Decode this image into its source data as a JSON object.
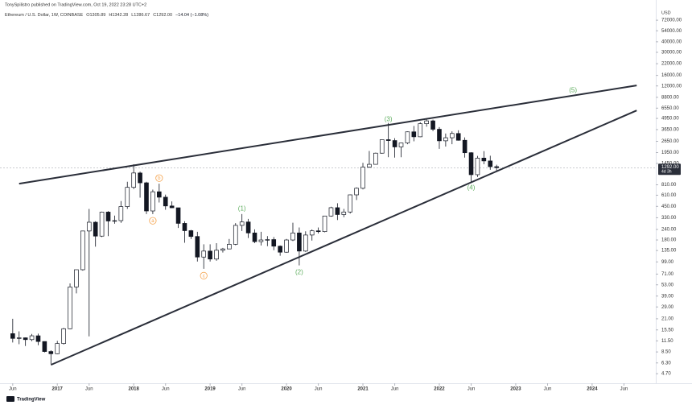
{
  "chart_data": {
    "type": "candlestick",
    "publisher": "TonySpilistro published on TradingView.com, Oct 19, 2022 23:28 UTC+2",
    "title": "Ethereum / U.S. Dollar, 1W, COINBASE",
    "legend_values": [
      "O1305.89",
      "H1342.28",
      "L1286.67",
      "C1292.00",
      "−14.04 (−1.08%)"
    ],
    "y_unit": "USD",
    "brand": "TradingView",
    "log_scale": true,
    "up_color": "#ffffff",
    "down_color": "#131722",
    "x": [
      "2016-06",
      "2016-07",
      "2016-08",
      "2016-09",
      "2016-10",
      "2016-11",
      "2016-12",
      "2017-01",
      "2017-02",
      "2017-03",
      "2017-04",
      "2017-05",
      "2017-06",
      "2017-07",
      "2017-08",
      "2017-09",
      "2017-10",
      "2017-11",
      "2017-12",
      "2018-01",
      "2018-02",
      "2018-03",
      "2018-04",
      "2018-05",
      "2018-06",
      "2018-07",
      "2018-08",
      "2018-09",
      "2018-10",
      "2018-11",
      "2018-12",
      "2019-01",
      "2019-02",
      "2019-03",
      "2019-04",
      "2019-05",
      "2019-06",
      "2019-07",
      "2019-08",
      "2019-09",
      "2019-10",
      "2019-11",
      "2019-12",
      "2020-01",
      "2020-02",
      "2020-03",
      "2020-04",
      "2020-05",
      "2020-06",
      "2020-07",
      "2020-08",
      "2020-09",
      "2020-10",
      "2020-11",
      "2020-12",
      "2021-01",
      "2021-02",
      "2021-03",
      "2021-04",
      "2021-05",
      "2021-06",
      "2021-07",
      "2021-08",
      "2021-09",
      "2021-10",
      "2021-11",
      "2021-12",
      "2022-01",
      "2022-02",
      "2022-03",
      "2022-04",
      "2022-05",
      "2022-06",
      "2022-07",
      "2022-08",
      "2022-09",
      "2022-10"
    ],
    "open": [
      14,
      12.3,
      12.5,
      11.9,
      13.2,
      11.3,
      8.6,
      8.1,
      10.7,
      16,
      50,
      80,
      230,
      292,
      200,
      385,
      302,
      305,
      447,
      756,
      1118,
      855,
      397,
      670,
      578,
      455,
      433,
      283,
      232,
      198,
      113,
      133,
      107,
      136,
      141,
      160,
      268,
      294,
      218,
      172,
      180,
      182,
      152,
      129,
      180,
      218,
      133,
      206,
      231,
      226,
      346,
      434,
      360,
      386,
      616,
      737,
      1314,
      1416,
      1919,
      2773,
      2707,
      2275,
      2536,
      3433,
      3000,
      4288,
      4630,
      3683,
      2688,
      2922,
      3282,
      2727,
      1942,
      1067,
      1678,
      1553,
      1328
    ],
    "high": [
      21,
      14.9,
      12.6,
      13.9,
      14,
      11.3,
      8.9,
      11.5,
      16.4,
      55,
      80,
      232,
      420,
      300,
      390,
      395,
      350,
      520,
      880,
      1420,
      1160,
      880,
      710,
      835,
      620,
      515,
      434,
      300,
      237,
      225,
      160,
      160,
      165,
      145,
      185,
      285,
      365,
      320,
      240,
      225,
      200,
      195,
      155,
      185,
      288,
      253,
      228,
      240,
      253,
      348,
      445,
      490,
      420,
      622,
      755,
      1475,
      2040,
      1945,
      2800,
      4380,
      2890,
      2550,
      3470,
      4030,
      4460,
      4870,
      4780,
      3900,
      3280,
      3480,
      3580,
      2950,
      1970,
      1780,
      2030,
      1790,
      1400
    ],
    "low": [
      11,
      10.5,
      10,
      11.4,
      10.2,
      8.4,
      6.1,
      8,
      10.4,
      15.8,
      42,
      78,
      13,
      150,
      195,
      200,
      280,
      287,
      420,
      720,
      570,
      365,
      365,
      500,
      410,
      430,
      250,
      167,
      185,
      100,
      82,
      100,
      102,
      128,
      141,
      156,
      230,
      190,
      165,
      155,
      152,
      136,
      117,
      127,
      175,
      90,
      130,
      177,
      215,
      222,
      340,
      310,
      335,
      370,
      535,
      715,
      1290,
      1410,
      1890,
      1720,
      1700,
      1720,
      2450,
      2650,
      2970,
      3950,
      3500,
      2160,
      2300,
      2450,
      2700,
      1700,
      880,
      1000,
      1420,
      1220,
      1190
    ],
    "close": [
      12.3,
      12.5,
      11.9,
      13.2,
      11.3,
      8.6,
      8.1,
      10.7,
      16,
      50,
      80,
      230,
      292,
      200,
      385,
      302,
      305,
      447,
      756,
      1118,
      855,
      397,
      670,
      578,
      455,
      433,
      283,
      232,
      198,
      113,
      133,
      107,
      136,
      141,
      160,
      268,
      294,
      218,
      172,
      180,
      182,
      152,
      129,
      180,
      218,
      133,
      206,
      231,
      226,
      346,
      434,
      360,
      386,
      616,
      737,
      1314,
      1416,
      1919,
      2773,
      2707,
      2275,
      2536,
      3433,
      3000,
      4288,
      4630,
      3683,
      2688,
      2922,
      3282,
      2727,
      1942,
      1067,
      1678,
      1553,
      1328,
      1292
    ],
    "xlim": [
      "2016-04",
      "2024-11"
    ],
    "xticks": [
      {
        "value": "2016-06",
        "label": "Jun"
      },
      {
        "value": "2017-01",
        "label": "2017"
      },
      {
        "value": "2017-06",
        "label": "Jun"
      },
      {
        "value": "2018-01",
        "label": "2018"
      },
      {
        "value": "2018-06",
        "label": "Jun"
      },
      {
        "value": "2019-01",
        "label": "2019"
      },
      {
        "value": "2019-06",
        "label": "Jun"
      },
      {
        "value": "2020-01",
        "label": "2020"
      },
      {
        "value": "2020-06",
        "label": "Jun"
      },
      {
        "value": "2021-01",
        "label": "2021"
      },
      {
        "value": "2021-06",
        "label": "Jun"
      },
      {
        "value": "2022-01",
        "label": "2022"
      },
      {
        "value": "2022-06",
        "label": "Jun"
      },
      {
        "value": "2023-01",
        "label": "2023"
      },
      {
        "value": "2023-06",
        "label": "Jun"
      },
      {
        "value": "2024-01",
        "label": "2024"
      },
      {
        "value": "2024-06",
        "label": "Jun"
      }
    ],
    "ylim": [
      3.7,
      96000
    ],
    "yticks": [
      {
        "value": 72000,
        "label": "72000.00"
      },
      {
        "value": 54000,
        "label": "54000.00"
      },
      {
        "value": 40000,
        "label": "40000.00"
      },
      {
        "value": 30000,
        "label": "30000.00"
      },
      {
        "value": 22000,
        "label": "22000.00"
      },
      {
        "value": 16000,
        "label": "16000.00"
      },
      {
        "value": 12000,
        "label": "12000.00"
      },
      {
        "value": 8800,
        "label": "8800.00"
      },
      {
        "value": 6550,
        "label": "6550.00"
      },
      {
        "value": 4950,
        "label": "4950.00"
      },
      {
        "value": 3650,
        "label": "3650.00"
      },
      {
        "value": 2650,
        "label": "2650.00"
      },
      {
        "value": 1950,
        "label": "1950.00"
      },
      {
        "value": 1450,
        "label": "1450.00"
      },
      {
        "value": 810,
        "label": "810.00"
      },
      {
        "value": 610,
        "label": "610.00"
      },
      {
        "value": 450,
        "label": "450.00"
      },
      {
        "value": 330,
        "label": "330.00"
      },
      {
        "value": 240,
        "label": "240.00"
      },
      {
        "value": 180,
        "label": "180.00"
      },
      {
        "value": 135,
        "label": "135.00"
      },
      {
        "value": 99,
        "label": "99.00"
      },
      {
        "value": 71,
        "label": "71.00"
      },
      {
        "value": 53,
        "label": "53.00"
      },
      {
        "value": 39,
        "label": "39.00"
      },
      {
        "value": 29,
        "label": "29.00"
      },
      {
        "value": 21,
        "label": "21.00"
      },
      {
        "value": 15.5,
        "label": "15.50"
      },
      {
        "value": 11.5,
        "label": "11.50"
      },
      {
        "value": 8.5,
        "label": "8.50"
      },
      {
        "value": 6.3,
        "label": "6.30"
      },
      {
        "value": 4.7,
        "label": "4.70"
      }
    ],
    "last_price": {
      "value": 1292,
      "label": "1292.00"
    },
    "countdown": "4d 3h",
    "trendlines": [
      {
        "start": [
          "2016-07",
          836
        ],
        "end": [
          "2024-08",
          12160
        ]
      },
      {
        "start": [
          "2016-12",
          5.98
        ],
        "end": [
          "2024-08",
          6150
        ]
      }
    ],
    "annotations": [
      {
        "text": "(1)",
        "x": "2019-06",
        "y": 423,
        "color": "#5fae5f"
      },
      {
        "text": "(2)",
        "x": "2020-03",
        "y": 75,
        "color": "#5fae5f"
      },
      {
        "text": "(3)",
        "x": "2021-05",
        "y": 4830,
        "color": "#5fae5f"
      },
      {
        "text": "(4)",
        "x": "2022-06",
        "y": 748,
        "color": "#5fae5f"
      },
      {
        "text": "(5)",
        "x": "2023-10",
        "y": 10670,
        "color": "#5fae5f"
      },
      {
        "text": "a",
        "x": "2018-04",
        "y": 304,
        "color": "#f5a34d",
        "circled": true
      },
      {
        "text": "b",
        "x": "2018-05",
        "y": 973,
        "color": "#f5a34d",
        "circled": true
      },
      {
        "text": "c",
        "x": "2018-12",
        "y": 68,
        "color": "#f5a34d",
        "circled": true
      }
    ]
  }
}
